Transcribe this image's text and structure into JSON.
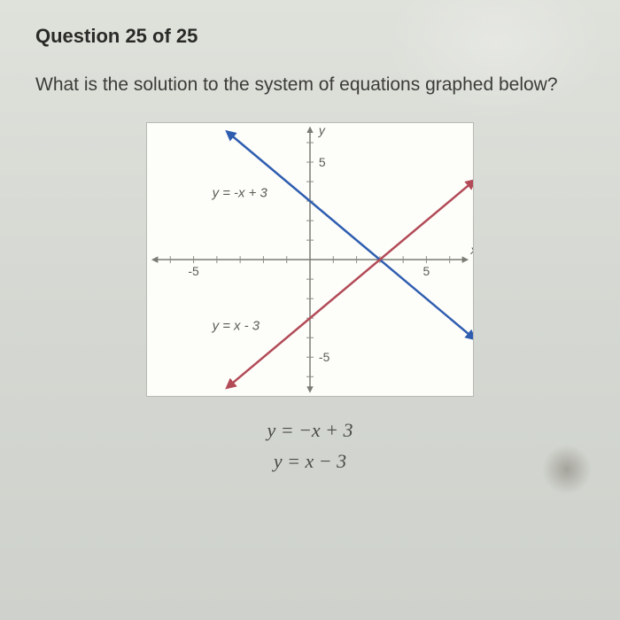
{
  "header": {
    "label": "Question 25 of 25",
    "fontsize": 22,
    "weight": 700,
    "color": "#2a2b28"
  },
  "prompt": {
    "text": "What is the solution to the system of equations graphed below?",
    "fontsize": 21,
    "color": "#3b3c38"
  },
  "graph": {
    "type": "line",
    "background_color": "#fdfdf9",
    "border_color": "#b7b9b2",
    "axis_color": "#7a7c74",
    "tick_color": "#8a8c84",
    "xlim": [
      -7,
      7
    ],
    "ylim": [
      -7,
      7
    ],
    "xlabel": "x",
    "ylabel": "y",
    "label_color": "#5a5c55",
    "label_fontsize": 14,
    "tick_label_fontsize": 14,
    "tick_marks": {
      "x": [
        -5,
        5
      ],
      "y": [
        -5,
        5
      ],
      "x_labels": {
        "-5": "-5",
        "5": "5"
      },
      "y_labels": {
        "-5": "-5",
        "5": "5"
      }
    },
    "lines": [
      {
        "label": "y = -x + 3",
        "label_pos": {
          "x": -4.2,
          "y": 3.2
        },
        "slope": -1,
        "intercept": 3,
        "color": "#2e5db0",
        "width": 2.5,
        "arrows": true,
        "x_from": -3.5,
        "x_to": 7
      },
      {
        "label": "y = x - 3",
        "label_pos": {
          "x": -4.2,
          "y": -3.6
        },
        "slope": 1,
        "intercept": -3,
        "color": "#b24a57",
        "width": 2.5,
        "arrows": true,
        "x_from": -3.5,
        "x_to": 7
      }
    ]
  },
  "equations_below": {
    "line1": "y = −x + 3",
    "line2": "y = x − 3",
    "fontsize": 22,
    "color": "#4a4c46"
  }
}
